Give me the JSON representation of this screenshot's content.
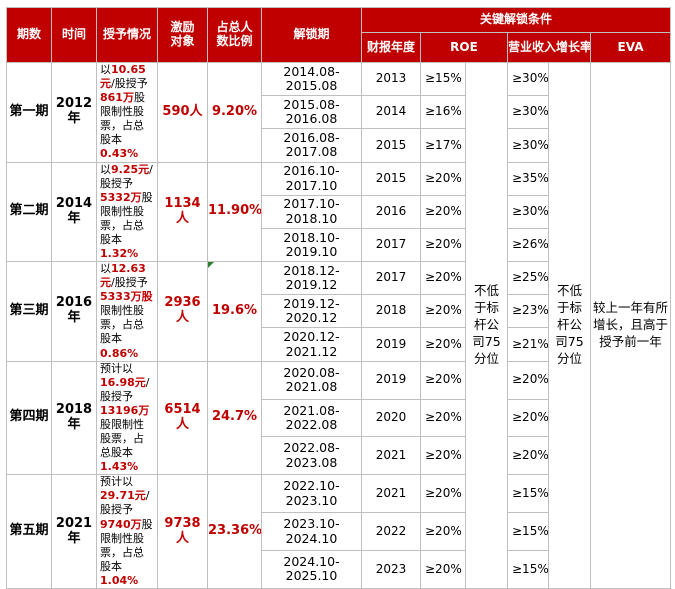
{
  "headers": {
    "phase": "期数",
    "time": "时间",
    "grant": "授予情况",
    "incentive": "激励\n对象",
    "ratio": "占总人\n数比例",
    "period": "解锁期",
    "conditions": "关键解锁条件",
    "fiscal_year": "财报年度",
    "roe": "ROE",
    "revenue_growth": "营业收入增长率",
    "eva": "EVA"
  },
  "phases": [
    {
      "phase": "第一期",
      "year": "2012年",
      "grant": {
        "pre": "以",
        "price": "10.65元",
        "mid1": "/股授予",
        "shares": "861万",
        "mid2": "股限制性股票，占总股本",
        "pct": "0.43%"
      },
      "incentive": "590人",
      "ratio": "9.20%",
      "rows": [
        {
          "period": "2014.08-2015.08",
          "fy": "2013",
          "roe": "≥15%",
          "growth": "≥30%"
        },
        {
          "period": "2015.08-2016.08",
          "fy": "2014",
          "roe": "≥16%",
          "growth": "≥30%"
        },
        {
          "period": "2016.08-2017.08",
          "fy": "2015",
          "roe": "≥17%",
          "growth": "≥30%"
        }
      ]
    },
    {
      "phase": "第二期",
      "year": "2014年",
      "grant": {
        "pre": "以",
        "price": "9.25元",
        "mid1": "/股授予",
        "shares": "5332万",
        "mid2": "股限制性股票，占总股本",
        "pct": "1.32%"
      },
      "incentive": "1134人",
      "ratio": "11.90%",
      "rows": [
        {
          "period": "2016.10-2017.10",
          "fy": "2015",
          "roe": "≥20%",
          "growth": "≥35%"
        },
        {
          "period": "2017.10-2018.10",
          "fy": "2016",
          "roe": "≥20%",
          "growth": "≥30%"
        },
        {
          "period": "2018.10-2019.10",
          "fy": "2017",
          "roe": "≥20%",
          "growth": "≥26%"
        }
      ]
    },
    {
      "phase": "第三期",
      "year": "2016年",
      "grant": {
        "pre": "以",
        "price": "12.63元",
        "mid1": "/股授予",
        "shares": "5333万股",
        "mid2": "限制性股票，占总股本",
        "pct": "0.86%"
      },
      "incentive": "2936人",
      "ratio": "19.6%",
      "rows": [
        {
          "period": "2018.12-2019.12",
          "fy": "2017",
          "roe": "≥20%",
          "growth": "≥25%"
        },
        {
          "period": "2019.12-2020.12",
          "fy": "2018",
          "roe": "≥20%",
          "growth": "≥23%"
        },
        {
          "period": "2020.12-2021.12",
          "fy": "2019",
          "roe": "≥20%",
          "growth": "≥21%"
        }
      ]
    },
    {
      "phase": "第四期",
      "year": "2018年",
      "grant": {
        "pre": "预计以",
        "price": "16.98元",
        "mid1": "/股授予",
        "shares": "13196万",
        "mid2": "股限制性股票，占总股本",
        "pct": "1.43%"
      },
      "incentive": "6514人",
      "ratio": "24.7%",
      "rows": [
        {
          "period": "2020.08-2021.08",
          "fy": "2019",
          "roe": "≥20%",
          "growth": "≥20%"
        },
        {
          "period": "2021.08-2022.08",
          "fy": "2020",
          "roe": "≥20%",
          "growth": "≥20%"
        },
        {
          "period": "2022.08-2023.08",
          "fy": "2021",
          "roe": "≥20%",
          "growth": "≥20%"
        }
      ]
    },
    {
      "phase": "第五期",
      "year": "2021年",
      "grant": {
        "pre": "预计以",
        "price": "29.71元",
        "mid1": "/股授予",
        "shares": "9740万",
        "mid2": "股限制性股票，占总股本",
        "pct": "1.04%"
      },
      "incentive": "9738人",
      "ratio": "23.36%",
      "rows": [
        {
          "period": "2022.10-2023.10",
          "fy": "2021",
          "roe": "≥20%",
          "growth": "≥15%"
        },
        {
          "period": "2023.10-2024.10",
          "fy": "2022",
          "roe": "≥20%",
          "growth": "≥15%"
        },
        {
          "period": "2024.10-2025.10",
          "fy": "2023",
          "roe": "≥20%",
          "growth": "≥15%"
        }
      ]
    }
  ],
  "merged_notes": {
    "roe_mid": "不低于标杆公司75分位",
    "growth_mid": "不低于标杆公司75分位",
    "eva": "较上一年有所增长，且高于授予前一年"
  },
  "colors": {
    "header_bg": "#c00000",
    "accent_red": "#c00000",
    "border": "#bfbfbf"
  }
}
